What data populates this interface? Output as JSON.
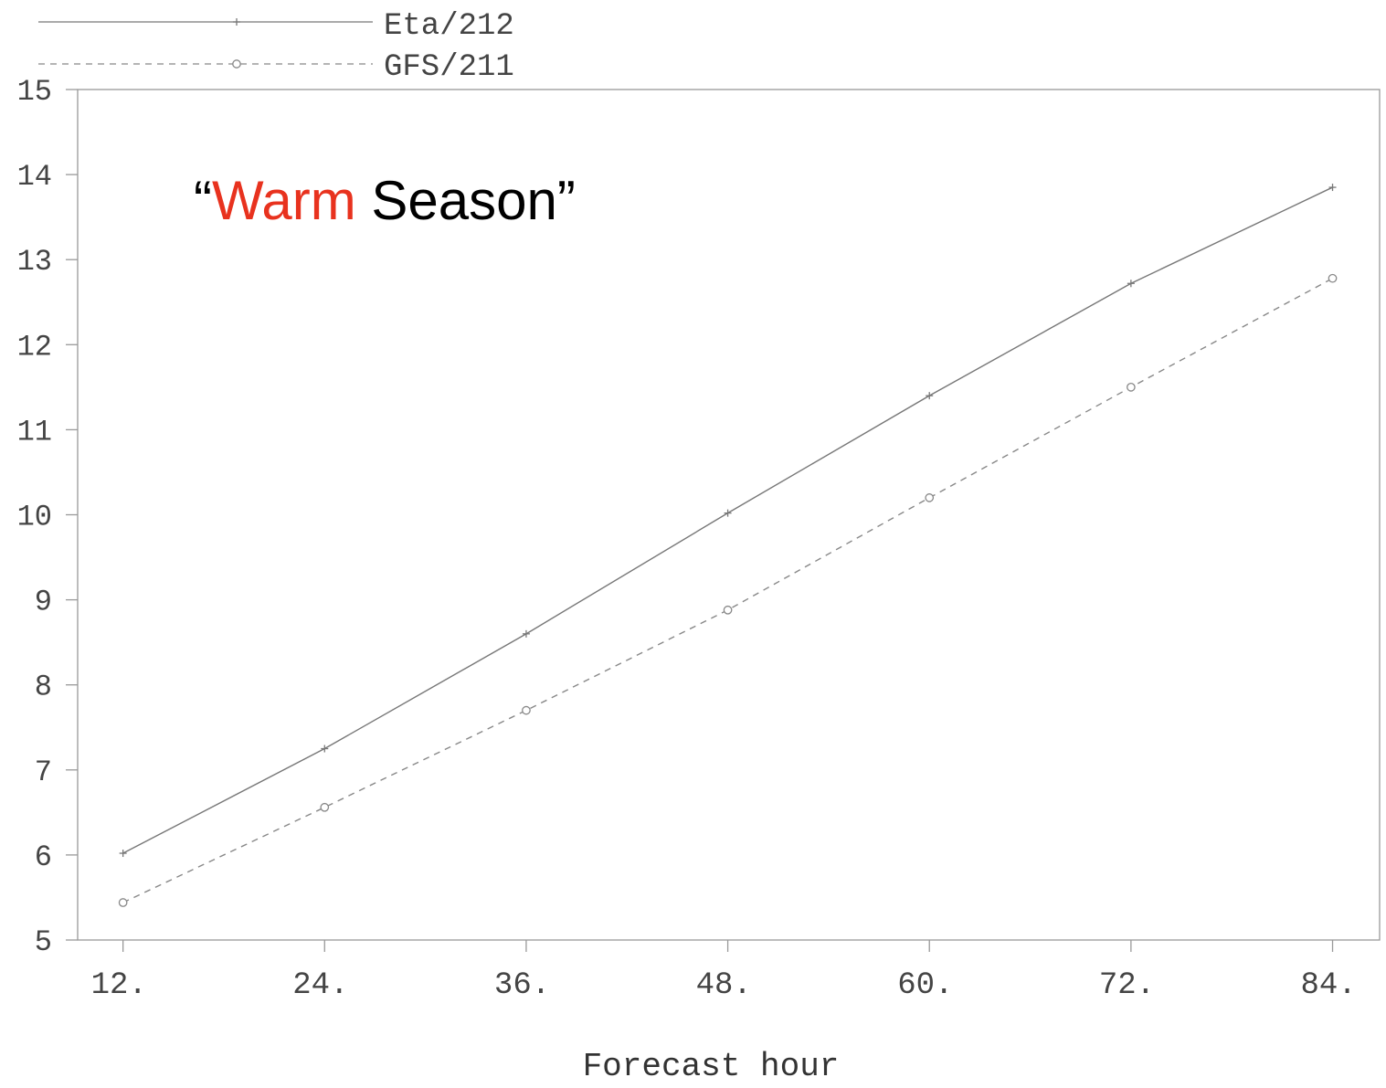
{
  "chart_data": {
    "type": "line",
    "title_parts": [
      "“",
      "Warm",
      " Season”"
    ],
    "title_colors": [
      "#000000",
      "#e8321e",
      "#000000"
    ],
    "xlabel": "Forecast hour",
    "ylabel": "",
    "x": [
      12,
      24,
      36,
      48,
      60,
      72,
      84
    ],
    "x_tick_labels": [
      "12.",
      "24.",
      "36.",
      "48.",
      "60.",
      "72.",
      "84."
    ],
    "y_ticks": [
      5,
      6,
      7,
      8,
      9,
      10,
      11,
      12,
      13,
      14,
      15
    ],
    "xlim": [
      9.3,
      86.8
    ],
    "ylim": [
      5,
      15
    ],
    "grid": false,
    "legend_position": "top, above plot",
    "series": [
      {
        "name": "Eta/212",
        "marker": "plus",
        "line": "solid",
        "color": "#777777",
        "values": [
          6.02,
          7.25,
          8.6,
          10.02,
          11.4,
          12.72,
          13.85
        ]
      },
      {
        "name": "GFS/211",
        "marker": "circle",
        "line": "dashed",
        "color": "#888888",
        "values": [
          5.44,
          6.56,
          7.7,
          8.88,
          10.2,
          11.5,
          12.78
        ]
      }
    ]
  }
}
